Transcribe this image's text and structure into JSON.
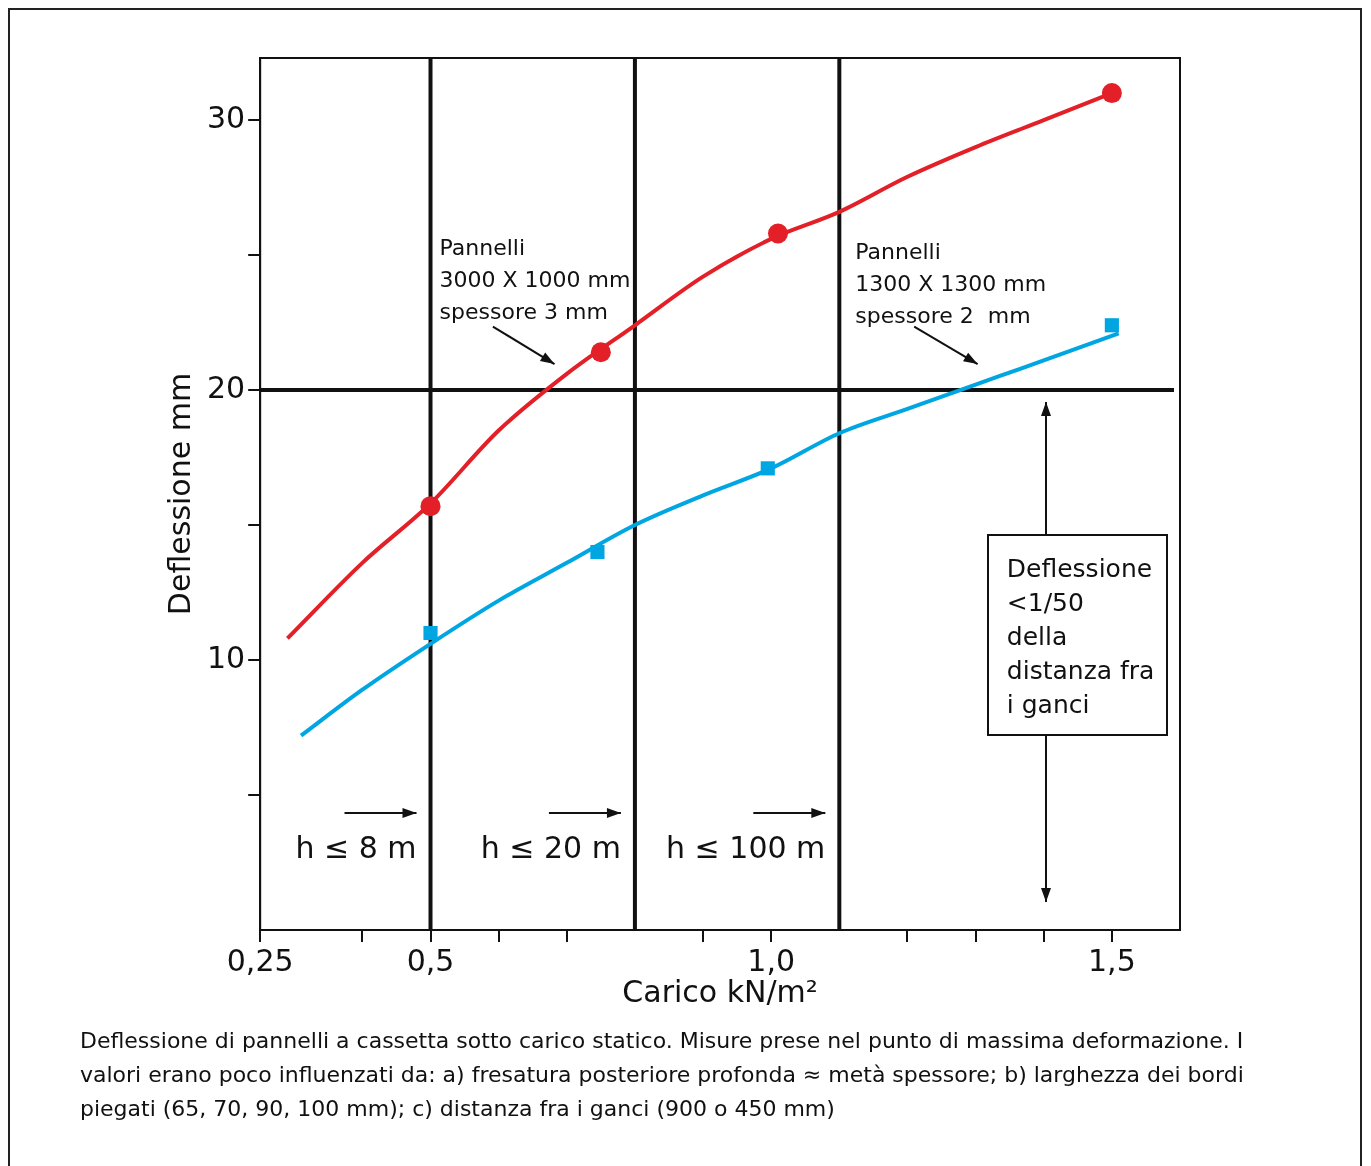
{
  "chart_data": {
    "type": "line",
    "xlabel": "Carico kN/m²",
    "ylabel": "Deflessione mm",
    "xlim": [
      0.25,
      1.6
    ],
    "ylim": [
      0,
      32.3
    ],
    "xticks": [
      {
        "value": 0.25,
        "label": "0,25"
      },
      {
        "value": 0.4,
        "label": null
      },
      {
        "value": 0.5,
        "label": "0,5"
      },
      {
        "value": 0.6,
        "label": null
      },
      {
        "value": 0.7,
        "label": null
      },
      {
        "value": 0.9,
        "label": null
      },
      {
        "value": 1.0,
        "label": "1,0"
      },
      {
        "value": 1.2,
        "label": null
      },
      {
        "value": 1.3,
        "label": null
      },
      {
        "value": 1.4,
        "label": null
      },
      {
        "value": 1.5,
        "label": "1,5"
      }
    ],
    "yticks": [
      {
        "value": 5,
        "label": null
      },
      10,
      {
        "value": 15,
        "label": null
      },
      20,
      {
        "value": 25,
        "label": null
      },
      30
    ],
    "series": [
      {
        "type": "line",
        "color": "#e32028",
        "marker": "none",
        "x": [
          0.29,
          0.4,
          0.5,
          0.6,
          0.7,
          0.8,
          0.9,
          1.0,
          1.1,
          1.2,
          1.3,
          1.4,
          1.5
        ],
        "values": [
          10.8,
          13.6,
          15.8,
          18.5,
          20.6,
          22.4,
          24.2,
          25.6,
          26.6,
          27.9,
          29.0,
          30.0,
          31.0
        ]
      },
      {
        "type": "scatter",
        "color": "#e32028",
        "marker": "circle",
        "x": [
          0.5,
          0.75,
          1.01,
          1.5
        ],
        "values": [
          15.7,
          21.4,
          25.8,
          31.0
        ]
      },
      {
        "type": "line",
        "color": "#00a6e2",
        "marker": "none",
        "x": [
          0.31,
          0.4,
          0.5,
          0.6,
          0.7,
          0.8,
          0.9,
          1.0,
          1.1,
          1.2,
          1.3,
          1.4,
          1.51
        ],
        "values": [
          7.2,
          8.9,
          10.6,
          12.2,
          13.6,
          15.0,
          16.1,
          17.1,
          18.4,
          19.3,
          20.2,
          21.1,
          22.1
        ]
      },
      {
        "type": "scatter",
        "color": "#00a6e2",
        "marker": "square",
        "x": [
          0.5,
          0.745,
          0.995,
          1.5
        ],
        "values": [
          11.0,
          14.0,
          17.1,
          22.4
        ]
      }
    ],
    "ref_lines": [
      {
        "axis": "x",
        "value": 0.5,
        "label": "h ≤ 8 m"
      },
      {
        "axis": "x",
        "value": 0.8,
        "label": "h ≤ 20 m"
      },
      {
        "axis": "x",
        "value": 1.1,
        "label": "h ≤ 100 m"
      },
      {
        "axis": "y",
        "value": 20
      }
    ],
    "annotations": [
      "Pannelli\n3000 X 1000 mm\nspessore 3 mm",
      "Pannelli\n1300 X 1300 mm\nspessore 2  mm",
      "Deflessione\n<1/50\ndella\ndistanza fra\ni ganci",
      "Deflessione di pannelli a cassetta sotto carico statico. Misure prese nel punto di massima deformazione. I valori erano poco influenzati da: a) fresatura posteriore profonda ≈ metà spessore; b) larghezza dei bordi piegati (65, 70, 90, 100 mm); c) distanza fra i ganci (900 o 450 mm)"
    ],
    "grid": false,
    "legend": false
  }
}
